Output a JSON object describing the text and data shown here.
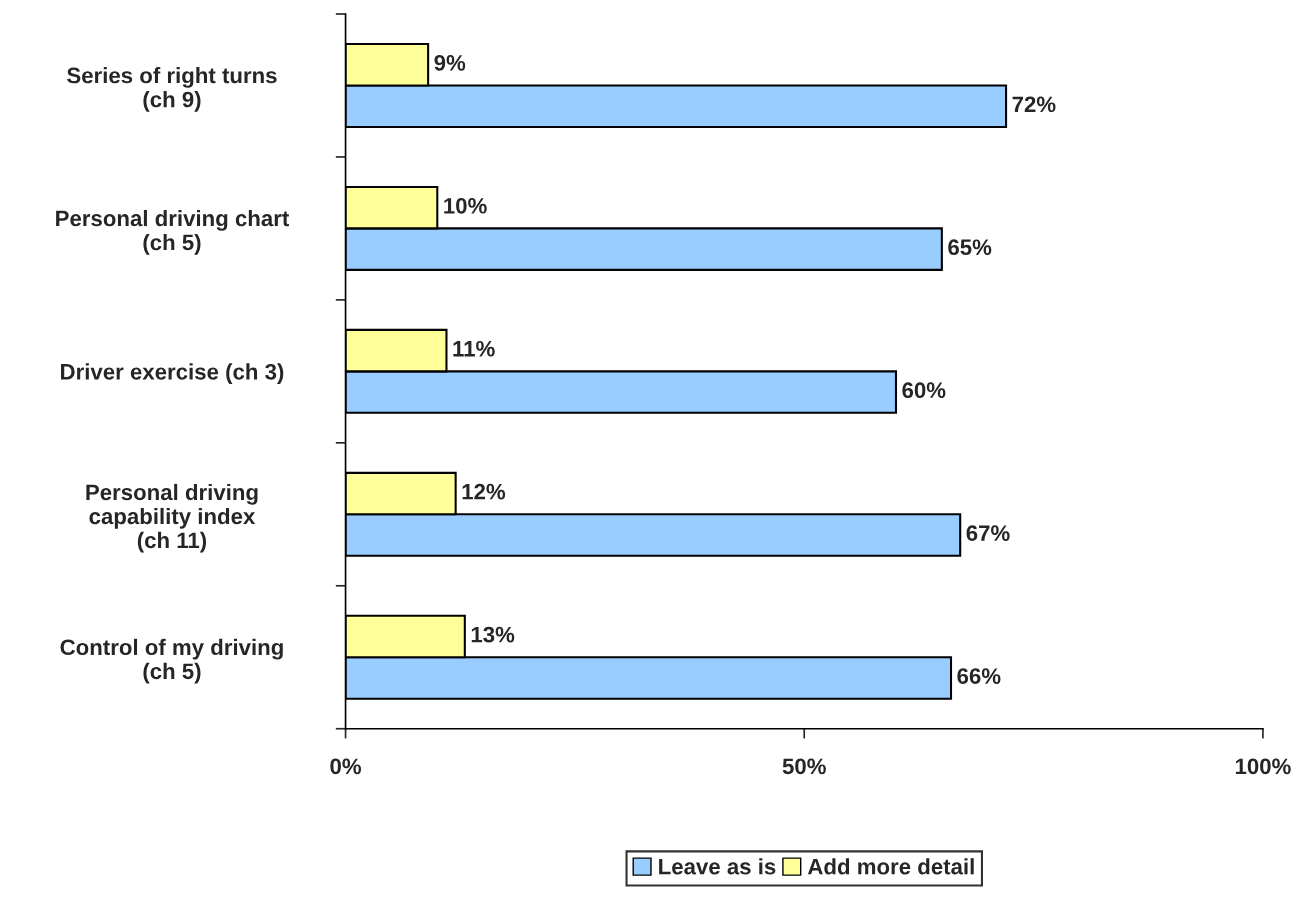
{
  "chart_data": {
    "type": "bar",
    "orientation": "horizontal",
    "categories": [
      "Series of right turns\n(ch 9)",
      "Personal driving chart\n(ch 5)",
      "Driver exercise (ch 3)",
      "Personal driving\ncapability index\n(ch 11)",
      "Control of my driving\n(ch 5)"
    ],
    "series": [
      {
        "name": "Leave as is",
        "color": "#99ccff",
        "values": [
          72,
          65,
          60,
          67,
          66
        ],
        "value_labels": [
          "72%",
          "65%",
          "60%",
          "67%",
          "66%"
        ]
      },
      {
        "name": "Add more detail",
        "color": "#ffff99",
        "values": [
          9,
          10,
          11,
          12,
          13
        ],
        "value_labels": [
          "9%",
          "10%",
          "11%",
          "12%",
          "13%"
        ]
      }
    ],
    "xlim": [
      0,
      100
    ],
    "xticks": [
      {
        "value": 0,
        "label": "0%"
      },
      {
        "value": 50,
        "label": "50%"
      },
      {
        "value": 100,
        "label": "100%"
      }
    ],
    "grid": false,
    "legend": "bottom"
  }
}
